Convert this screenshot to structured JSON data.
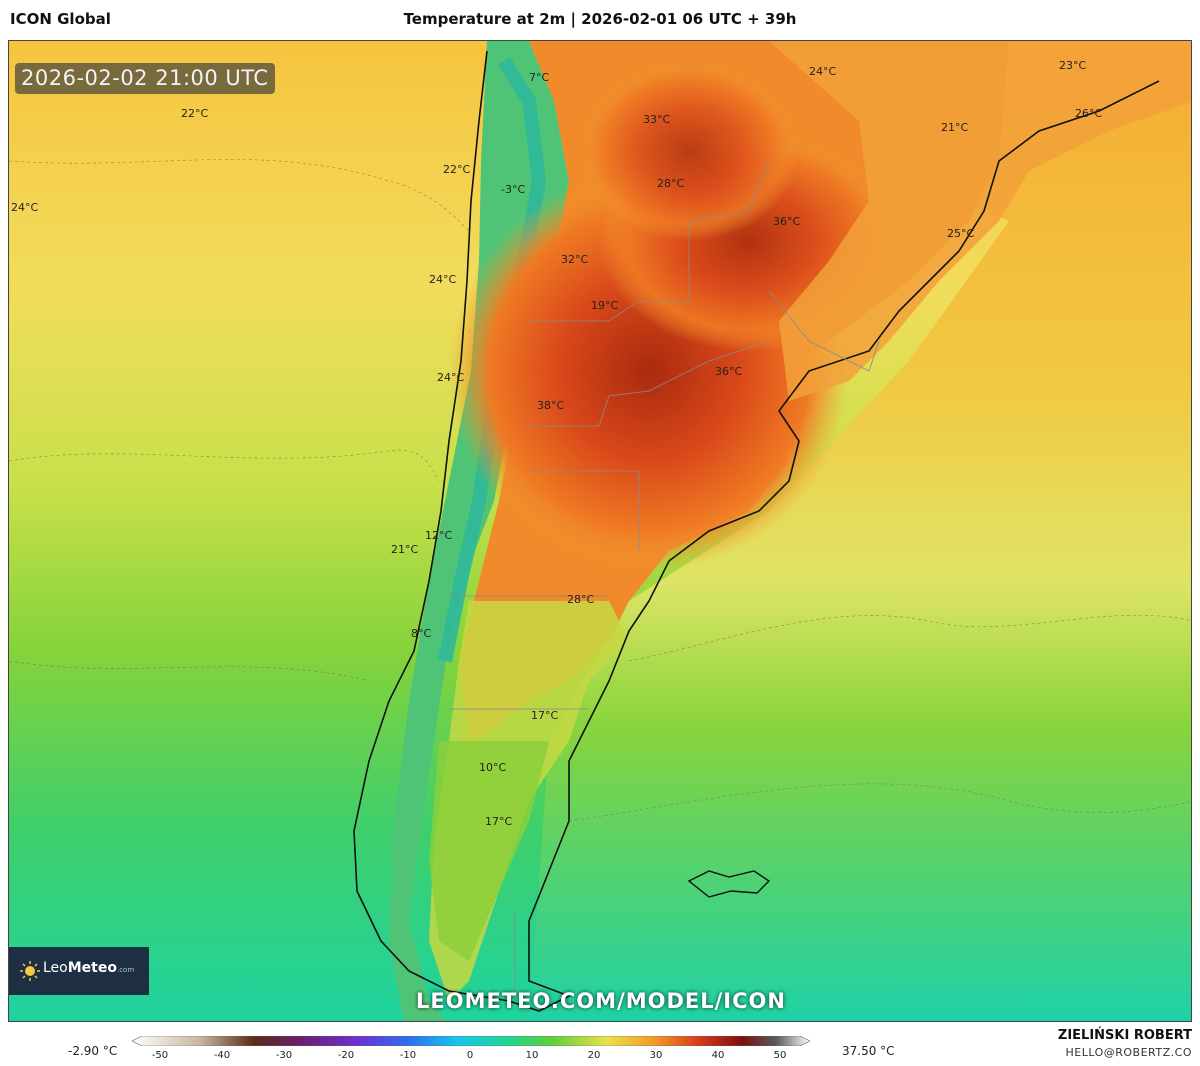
{
  "header": {
    "model_name": "ICON Global",
    "title": "Temperature at 2m | 2026-02-01 06 UTC + 39h"
  },
  "map": {
    "valid_time": "2026-02-02 21:00 UTC",
    "labels": [
      {
        "text": "22°C"
      },
      {
        "text": "24°C"
      },
      {
        "text": "7°C"
      },
      {
        "text": "22°C"
      },
      {
        "text": "-3°C"
      },
      {
        "text": "24°C"
      },
      {
        "text": "24°C"
      },
      {
        "text": "21°C"
      },
      {
        "text": "12°C"
      },
      {
        "text": "8°C"
      },
      {
        "text": "33°C"
      },
      {
        "text": "28°C"
      },
      {
        "text": "32°C"
      },
      {
        "text": "19°C"
      },
      {
        "text": "38°C"
      },
      {
        "text": "36°C"
      },
      {
        "text": "36°C"
      },
      {
        "text": "24°C"
      },
      {
        "text": "21°C"
      },
      {
        "text": "23°C"
      },
      {
        "text": "26°C"
      },
      {
        "text": "25°C"
      },
      {
        "text": "28°C"
      },
      {
        "text": "17°C"
      },
      {
        "text": "10°C"
      },
      {
        "text": "17°C"
      }
    ],
    "logo": {
      "brand_a": "Leo",
      "brand_b": "Meteo",
      "suffix": ".com"
    },
    "watermark": "LEOMETEO.COM/MODEL/ICON"
  },
  "colorbar": {
    "min_label": "-2.90 °C",
    "max_label": "37.50 °C",
    "ticks": [
      "-50",
      "-40",
      "-30",
      "-20",
      "-10",
      "0",
      "10",
      "20",
      "30",
      "40",
      "50"
    ]
  },
  "credit": {
    "name": "ZIELIŃSKI ROBERT",
    "email": "HELLO@ROBERTZ.CO"
  },
  "colors": {
    "ocean_warm": "#f5c64a",
    "ocean_mid": "#9ad23a",
    "ocean_cold": "#22cf8e",
    "hot": "#e25a1c",
    "hottest": "#b8300f"
  }
}
